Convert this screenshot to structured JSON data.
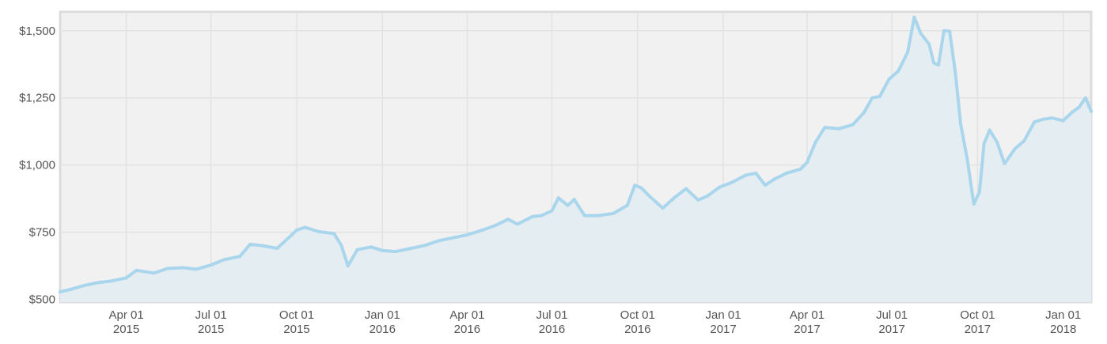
{
  "chart_data": {
    "type": "area",
    "title": "",
    "xlabel": "",
    "ylabel": "",
    "x_range": [
      "2015-01-20",
      "2018-01-31"
    ],
    "ylim": [
      490,
      1570
    ],
    "grid": true,
    "legend": "none",
    "y_ticks": [
      {
        "value": 500,
        "label": "$500"
      },
      {
        "value": 750,
        "label": "$750"
      },
      {
        "value": 1000,
        "label": "$1,000"
      },
      {
        "value": 1250,
        "label": "$1,250"
      },
      {
        "value": 1500,
        "label": "$1,500"
      }
    ],
    "x_ticks": [
      {
        "date": "2015-04-01",
        "line1": "Apr 01",
        "line2": "2015"
      },
      {
        "date": "2015-07-01",
        "line1": "Jul 01",
        "line2": "2015"
      },
      {
        "date": "2015-10-01",
        "line1": "Oct 01",
        "line2": "2015"
      },
      {
        "date": "2016-01-01",
        "line1": "Jan 01",
        "line2": "2016"
      },
      {
        "date": "2016-04-01",
        "line1": "Apr 01",
        "line2": "2016"
      },
      {
        "date": "2016-07-01",
        "line1": "Jul 01",
        "line2": "2016"
      },
      {
        "date": "2016-10-01",
        "line1": "Oct 01",
        "line2": "2016"
      },
      {
        "date": "2017-01-01",
        "line1": "Jan 01",
        "line2": "2017"
      },
      {
        "date": "2017-04-01",
        "line1": "Apr 01",
        "line2": "2017"
      },
      {
        "date": "2017-07-01",
        "line1": "Jul 01",
        "line2": "2017"
      },
      {
        "date": "2017-10-01",
        "line1": "Oct 01",
        "line2": "2017"
      },
      {
        "date": "2018-01-01",
        "line1": "Jan 01",
        "line2": "2018"
      }
    ],
    "series": [
      {
        "points": [
          [
            "2015-01-20",
            528
          ],
          [
            "2015-02-01",
            538
          ],
          [
            "2015-02-15",
            552
          ],
          [
            "2015-03-01",
            562
          ],
          [
            "2015-03-15",
            568
          ],
          [
            "2015-04-01",
            580
          ],
          [
            "2015-04-12",
            608
          ],
          [
            "2015-05-01",
            598
          ],
          [
            "2015-05-15",
            615
          ],
          [
            "2015-06-01",
            618
          ],
          [
            "2015-06-15",
            612
          ],
          [
            "2015-07-01",
            628
          ],
          [
            "2015-07-15",
            648
          ],
          [
            "2015-08-01",
            660
          ],
          [
            "2015-08-12",
            705
          ],
          [
            "2015-08-25",
            700
          ],
          [
            "2015-09-10",
            690
          ],
          [
            "2015-09-25",
            738
          ],
          [
            "2015-10-01",
            758
          ],
          [
            "2015-10-10",
            768
          ],
          [
            "2015-10-25",
            752
          ],
          [
            "2015-11-10",
            745
          ],
          [
            "2015-11-18",
            700
          ],
          [
            "2015-11-25",
            625
          ],
          [
            "2015-12-05",
            685
          ],
          [
            "2015-12-20",
            695
          ],
          [
            "2016-01-01",
            682
          ],
          [
            "2016-01-15",
            678
          ],
          [
            "2016-02-01",
            690
          ],
          [
            "2016-02-15",
            700
          ],
          [
            "2016-03-01",
            718
          ],
          [
            "2016-03-15",
            728
          ],
          [
            "2016-04-01",
            740
          ],
          [
            "2016-04-15",
            755
          ],
          [
            "2016-05-01",
            775
          ],
          [
            "2016-05-15",
            798
          ],
          [
            "2016-05-25",
            780
          ],
          [
            "2016-06-10",
            808
          ],
          [
            "2016-06-20",
            812
          ],
          [
            "2016-07-01",
            830
          ],
          [
            "2016-07-08",
            878
          ],
          [
            "2016-07-18",
            850
          ],
          [
            "2016-07-25",
            872
          ],
          [
            "2016-08-05",
            812
          ],
          [
            "2016-08-20",
            812
          ],
          [
            "2016-09-05",
            820
          ],
          [
            "2016-09-20",
            850
          ],
          [
            "2016-09-28",
            925
          ],
          [
            "2016-10-05",
            915
          ],
          [
            "2016-10-15",
            880
          ],
          [
            "2016-10-28",
            840
          ],
          [
            "2016-11-10",
            880
          ],
          [
            "2016-11-22",
            912
          ],
          [
            "2016-12-05",
            870
          ],
          [
            "2016-12-15",
            885
          ],
          [
            "2016-12-28",
            918
          ],
          [
            "2017-01-10",
            935
          ],
          [
            "2017-01-25",
            962
          ],
          [
            "2017-02-05",
            970
          ],
          [
            "2017-02-15",
            925
          ],
          [
            "2017-02-25",
            948
          ],
          [
            "2017-03-10",
            970
          ],
          [
            "2017-03-25",
            985
          ],
          [
            "2017-04-01",
            1010
          ],
          [
            "2017-04-10",
            1085
          ],
          [
            "2017-04-20",
            1140
          ],
          [
            "2017-05-05",
            1135
          ],
          [
            "2017-05-20",
            1150
          ],
          [
            "2017-06-01",
            1195
          ],
          [
            "2017-06-10",
            1250
          ],
          [
            "2017-06-18",
            1255
          ],
          [
            "2017-06-28",
            1320
          ],
          [
            "2017-07-08",
            1350
          ],
          [
            "2017-07-18",
            1420
          ],
          [
            "2017-07-25",
            1550
          ],
          [
            "2017-08-01",
            1490
          ],
          [
            "2017-08-10",
            1450
          ],
          [
            "2017-08-15",
            1380
          ],
          [
            "2017-08-20",
            1372
          ],
          [
            "2017-08-26",
            1500
          ],
          [
            "2017-09-01",
            1498
          ],
          [
            "2017-09-07",
            1350
          ],
          [
            "2017-09-13",
            1150
          ],
          [
            "2017-09-20",
            1020
          ],
          [
            "2017-09-27",
            855
          ],
          [
            "2017-10-03",
            900
          ],
          [
            "2017-10-08",
            1080
          ],
          [
            "2017-10-14",
            1130
          ],
          [
            "2017-10-22",
            1085
          ],
          [
            "2017-10-30",
            1005
          ],
          [
            "2017-11-10",
            1060
          ],
          [
            "2017-11-20",
            1090
          ],
          [
            "2017-12-01",
            1160
          ],
          [
            "2017-12-10",
            1170
          ],
          [
            "2017-12-20",
            1175
          ],
          [
            "2018-01-01",
            1165
          ],
          [
            "2018-01-10",
            1195
          ],
          [
            "2018-01-18",
            1215
          ],
          [
            "2018-01-25",
            1250
          ],
          [
            "2018-01-31",
            1200
          ]
        ]
      }
    ]
  },
  "colors": {
    "plot_background": "#f1f1f1",
    "grid": "#e2e2e2",
    "frame": "#dcdcdc",
    "line": "#a9d6ec",
    "area_fill": "#e4edf2",
    "tick_text": "#555555"
  }
}
